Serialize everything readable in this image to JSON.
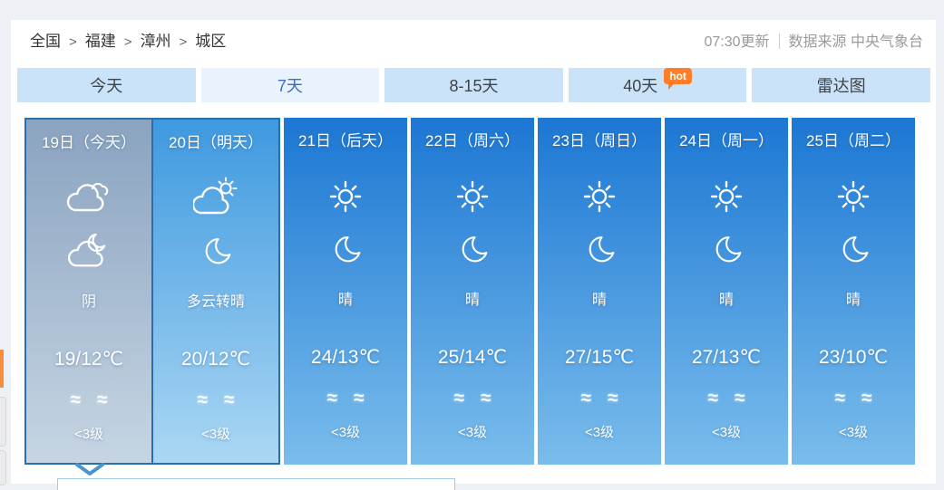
{
  "breadcrumb": {
    "items": [
      "全国",
      "福建",
      "漳州",
      "城区"
    ],
    "separator": ">"
  },
  "header": {
    "update_time": "07:30更新",
    "data_source": "数据来源 中央气象台"
  },
  "tabs": [
    {
      "id": "today",
      "label": "今天",
      "active": false
    },
    {
      "id": "7day",
      "label": "7天",
      "active": true
    },
    {
      "id": "8-15day",
      "label": "8-15天",
      "active": false
    },
    {
      "id": "40day",
      "label": "40天",
      "active": false,
      "badge": "hot"
    },
    {
      "id": "radar",
      "label": "雷达图",
      "active": false
    }
  ],
  "wind_symbol": "≈",
  "days": [
    {
      "date": "19日（今天）",
      "day_icon": "overcast",
      "night_icon": "cloud-moon",
      "weather": "阴",
      "temp": "19/12℃",
      "wind_level": "<3级",
      "variant": "today",
      "selected": true
    },
    {
      "date": "20日（明天）",
      "day_icon": "cloud-sun",
      "night_icon": "moon",
      "weather": "多云转晴",
      "temp": "20/12℃",
      "wind_level": "<3级",
      "variant": "tomorrow",
      "selected": false
    },
    {
      "date": "21日（后天）",
      "day_icon": "sun",
      "night_icon": "moon",
      "weather": "晴",
      "temp": "24/13℃",
      "wind_level": "<3级",
      "variant": "future",
      "selected": false
    },
    {
      "date": "22日（周六）",
      "day_icon": "sun",
      "night_icon": "moon",
      "weather": "晴",
      "temp": "25/14℃",
      "wind_level": "<3级",
      "variant": "future",
      "selected": false
    },
    {
      "date": "23日（周日）",
      "day_icon": "sun",
      "night_icon": "moon",
      "weather": "晴",
      "temp": "27/15℃",
      "wind_level": "<3级",
      "variant": "future",
      "selected": false
    },
    {
      "date": "24日（周一）",
      "day_icon": "sun",
      "night_icon": "moon",
      "weather": "晴",
      "temp": "27/13℃",
      "wind_level": "<3级",
      "variant": "future",
      "selected": false
    },
    {
      "date": "25日（周二）",
      "day_icon": "sun",
      "night_icon": "moon",
      "weather": "晴",
      "temp": "23/10℃",
      "wind_level": "<3级",
      "variant": "future",
      "selected": false
    }
  ],
  "colors": {
    "page_background": "#edf1f6",
    "tab_background": "#cbe3f8",
    "tab_active_background": "#e9f3fd",
    "tab_active_text": "#3c6cc2",
    "hot_badge": "#ff7e28",
    "selected_border": "#2a6fad",
    "today_gradient_top": "#8aa3c0",
    "today_gradient_bottom": "#c6d5e3",
    "tomorrow_gradient_top": "#3e99df",
    "tomorrow_gradient_bottom": "#abd7f4",
    "future_gradient_top": "#1c77d3",
    "future_gradient_bottom": "#7abdec"
  }
}
